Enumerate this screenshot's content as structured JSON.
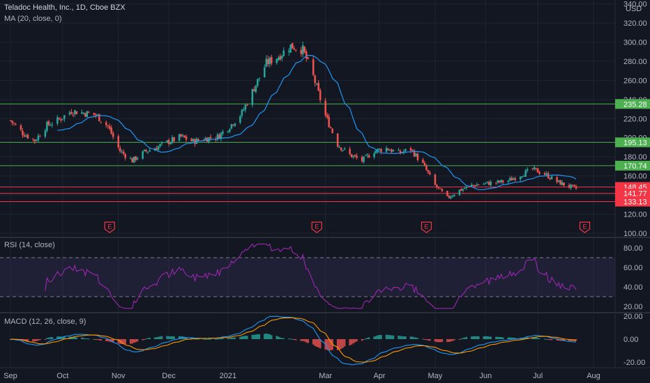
{
  "header": {
    "symbol": "Teladoc Health, Inc., 1D, Cboe BZX",
    "ma_label": "MA (20, close, 0)",
    "currency": "USD"
  },
  "rsi": {
    "label": "RSI (14, close)",
    "levels": [
      70,
      30
    ],
    "ticks": [
      "80.00",
      "60.00",
      "40.00",
      "20.00"
    ],
    "color": "#9c27b0"
  },
  "macd": {
    "label": "MACD (12, 26, close, 9)",
    "ticks": [
      "20.00",
      "0.00",
      "-20.00"
    ],
    "macd_color": "#2196f3",
    "signal_color": "#ff9800"
  },
  "chart_data": {
    "type": "candlestick",
    "title": "Teladoc Health, Inc., 1D, Cboe BZX",
    "y_ticks": [
      "340.00",
      "320.00",
      "300.00",
      "280.00",
      "260.00",
      "240.00",
      "220.00",
      "200.00",
      "180.00",
      "160.00",
      "140.00",
      "120.00",
      "100.00"
    ],
    "ylim": [
      100,
      340
    ],
    "x_ticks": [
      "Sep",
      "Oct",
      "Nov",
      "Dec",
      "2021",
      "Mar",
      "Apr",
      "May",
      "Jun",
      "Jul",
      "Aug"
    ],
    "ma_color": "#2196f3",
    "up_color": "#26a69a",
    "down_color": "#ef5350",
    "price_path": [
      [
        "2020-09-01",
        218
      ],
      [
        "2020-09-08",
        205
      ],
      [
        "2020-09-15",
        197
      ],
      [
        "2020-09-22",
        213
      ],
      [
        "2020-09-29",
        219
      ],
      [
        "2020-10-06",
        228
      ],
      [
        "2020-10-13",
        226
      ],
      [
        "2020-10-20",
        224
      ],
      [
        "2020-10-27",
        212
      ],
      [
        "2020-11-03",
        186
      ],
      [
        "2020-11-10",
        176
      ],
      [
        "2020-11-17",
        185
      ],
      [
        "2020-11-24",
        190
      ],
      [
        "2020-12-01",
        196
      ],
      [
        "2020-12-08",
        201
      ],
      [
        "2020-12-15",
        196
      ],
      [
        "2020-12-22",
        199
      ],
      [
        "2020-12-29",
        201
      ],
      [
        "2021-01-05",
        212
      ],
      [
        "2021-01-12",
        226
      ],
      [
        "2021-01-19",
        252
      ],
      [
        "2021-01-26",
        278
      ],
      [
        "2021-02-02",
        285
      ],
      [
        "2021-02-09",
        296
      ],
      [
        "2021-02-16",
        292
      ],
      [
        "2021-02-22",
        264
      ],
      [
        "2021-03-01",
        223
      ],
      [
        "2021-03-08",
        193
      ],
      [
        "2021-03-15",
        182
      ],
      [
        "2021-03-22",
        176
      ],
      [
        "2021-03-29",
        186
      ],
      [
        "2021-04-05",
        189
      ],
      [
        "2021-04-12",
        184
      ],
      [
        "2021-04-19",
        188
      ],
      [
        "2021-04-26",
        172
      ],
      [
        "2021-05-03",
        150
      ],
      [
        "2021-05-10",
        137
      ],
      [
        "2021-05-17",
        145
      ],
      [
        "2021-05-24",
        150
      ],
      [
        "2021-05-31",
        152
      ],
      [
        "2021-06-07",
        153
      ],
      [
        "2021-06-14",
        155
      ],
      [
        "2021-06-21",
        161
      ],
      [
        "2021-06-28",
        167
      ],
      [
        "2021-07-05",
        162
      ],
      [
        "2021-07-12",
        154
      ],
      [
        "2021-07-19",
        149
      ],
      [
        "2021-07-26",
        145
      ]
    ],
    "levels": [
      {
        "value": "235.28",
        "kind": "support"
      },
      {
        "value": "195.13",
        "kind": "support"
      },
      {
        "value": "170.74",
        "kind": "support"
      },
      {
        "value": "148.45",
        "kind": "resistance"
      },
      {
        "value": "141.77",
        "kind": "resistance"
      },
      {
        "value": "133.13",
        "kind": "resistance"
      }
    ],
    "earnings_marker_label": "E",
    "earnings_dates": [
      "2020-10-28",
      "2021-02-24",
      "2021-04-28",
      "2021-07-28"
    ]
  }
}
